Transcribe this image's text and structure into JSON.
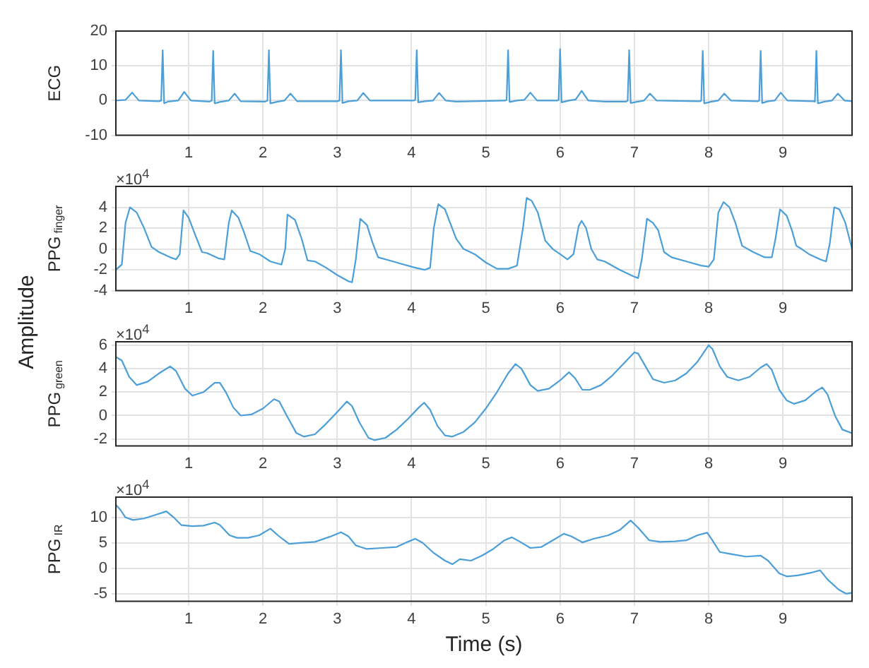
{
  "chart_data": [
    {
      "type": "line",
      "ylabel": "ECG",
      "annotations": [
        "Amplitude"
      ],
      "grid": true,
      "marker": "none",
      "xlim": [
        0.02,
        9.93
      ],
      "xticks": [
        1,
        2,
        3,
        4,
        5,
        6,
        7,
        8,
        9
      ],
      "ylim": [
        -10,
        20
      ],
      "yticks": [
        -10,
        0,
        10,
        20
      ],
      "x": [
        0.02,
        0.15,
        0.24,
        0.33,
        0.6,
        0.63,
        0.65,
        0.67,
        0.72,
        0.86,
        0.94,
        1.03,
        1.28,
        1.31,
        1.33,
        1.35,
        1.42,
        1.54,
        1.62,
        1.7,
        2.03,
        2.06,
        2.08,
        2.1,
        2.2,
        2.29,
        2.37,
        2.46,
        3.0,
        3.03,
        3.05,
        3.07,
        3.15,
        3.27,
        3.35,
        3.44,
        4.03,
        4.05,
        4.07,
        4.09,
        4.18,
        4.29,
        4.37,
        4.46,
        4.6,
        5.26,
        5.28,
        5.3,
        5.32,
        5.42,
        5.52,
        5.6,
        5.69,
        5.96,
        5.98,
        6.0,
        6.02,
        6.12,
        6.21,
        6.29,
        6.38,
        6.6,
        6.89,
        6.91,
        6.93,
        6.95,
        7.05,
        7.13,
        7.21,
        7.3,
        7.88,
        7.9,
        7.92,
        7.94,
        8.04,
        8.13,
        8.21,
        8.3,
        8.66,
        8.68,
        8.7,
        8.72,
        8.8,
        8.89,
        8.97,
        9.06,
        9.41,
        9.43,
        9.45,
        9.47,
        9.56,
        9.66,
        9.74,
        9.83,
        9.93
      ],
      "series": [
        {
          "color": "#4a9fd8",
          "values": [
            0,
            0.2,
            2.3,
            0,
            -0.2,
            0,
            14.5,
            -0.8,
            -0.3,
            0,
            2.5,
            0,
            -0.3,
            0,
            14.3,
            -0.8,
            -0.4,
            0,
            2,
            -0.2,
            -0.3,
            0,
            14.5,
            -0.8,
            -0.3,
            0,
            2,
            -0.2,
            -0.2,
            0,
            14.5,
            -0.7,
            -0.2,
            0,
            2.2,
            0,
            0,
            0.2,
            14.5,
            -0.5,
            -0.2,
            0,
            2.2,
            0,
            -0.3,
            0,
            0.2,
            14.5,
            -0.4,
            0,
            0.2,
            2.3,
            0,
            0,
            0.2,
            14.8,
            -0.5,
            0,
            0.3,
            2.8,
            0,
            -0.3,
            -0.3,
            0,
            14.5,
            -0.7,
            -0.3,
            0,
            2,
            0,
            -0.2,
            0,
            14.3,
            -0.8,
            -0.3,
            0,
            2,
            0,
            -0.2,
            0,
            14.3,
            -0.7,
            -0.2,
            0,
            2.3,
            0,
            -0.2,
            -0.3,
            14.3,
            -0.8,
            -0.3,
            0,
            2,
            0,
            -0.2
          ]
        }
      ]
    },
    {
      "type": "line",
      "ylabel": "PPG$_{finger}$",
      "annotations": [
        "×10$^{4}$"
      ],
      "grid": true,
      "marker": "none",
      "xlim": [
        0.02,
        9.93
      ],
      "xticks": [
        1,
        2,
        3,
        4,
        5,
        6,
        7,
        8,
        9
      ],
      "ylim": [
        -4,
        6
      ],
      "yticks": [
        -4,
        -2,
        0,
        2,
        4
      ],
      "x": [
        0.02,
        0.1,
        0.15,
        0.21,
        0.3,
        0.4,
        0.5,
        0.6,
        0.75,
        0.83,
        0.88,
        0.93,
        1.0,
        1.08,
        1.18,
        1.25,
        1.4,
        1.48,
        1.54,
        1.58,
        1.67,
        1.75,
        1.83,
        1.95,
        2.1,
        2.25,
        2.3,
        2.33,
        2.43,
        2.52,
        2.6,
        2.7,
        2.85,
        3.0,
        3.15,
        3.2,
        3.25,
        3.31,
        3.4,
        3.48,
        3.55,
        3.7,
        3.9,
        4.05,
        4.18,
        4.25,
        4.3,
        4.36,
        4.45,
        4.52,
        4.6,
        4.7,
        4.85,
        5.0,
        5.15,
        5.3,
        5.42,
        5.5,
        5.55,
        5.62,
        5.7,
        5.8,
        5.9,
        6.0,
        6.1,
        6.18,
        6.25,
        6.29,
        6.35,
        6.42,
        6.5,
        6.6,
        6.8,
        6.98,
        7.05,
        7.1,
        7.17,
        7.25,
        7.32,
        7.4,
        7.5,
        7.7,
        7.9,
        8.0,
        8.07,
        8.13,
        8.2,
        8.28,
        8.36,
        8.45,
        8.6,
        8.75,
        8.85,
        8.9,
        8.96,
        9.05,
        9.12,
        9.18,
        9.25,
        9.35,
        9.5,
        9.58,
        9.63,
        9.69,
        9.76,
        9.84,
        9.93
      ],
      "series": [
        {
          "color": "#4a9fd8",
          "values": [
            -2,
            -1.5,
            2.5,
            4,
            3.5,
            2,
            0.2,
            -0.3,
            -0.8,
            -1,
            -0.5,
            3.7,
            3,
            1.5,
            -0.3,
            -0.4,
            -0.9,
            -1,
            2.5,
            3.7,
            3,
            1.5,
            -0.2,
            -0.5,
            -1.2,
            -1.5,
            0,
            3.3,
            2.8,
            1,
            -1.1,
            -1.2,
            -1.8,
            -2.5,
            -3.1,
            -3.2,
            -1,
            2.9,
            2.3,
            0.5,
            -0.8,
            -1.1,
            -1.5,
            -1.8,
            -2,
            -1.8,
            2,
            4.3,
            3.8,
            2.5,
            1,
            0,
            -0.5,
            -1.3,
            -1.9,
            -1.9,
            -1.6,
            2,
            4.9,
            4.6,
            3.5,
            0.8,
            0,
            -0.5,
            -1,
            -0.5,
            2.2,
            2.7,
            2,
            0,
            -1,
            -1.2,
            -2,
            -2.6,
            -2.8,
            -1,
            2.9,
            2.5,
            1.8,
            -0.3,
            -0.8,
            -1.2,
            -1.6,
            -1.7,
            -1,
            3.5,
            4.5,
            4,
            2.5,
            0.3,
            -0.3,
            -0.8,
            -0.8,
            1,
            3.8,
            3.2,
            1.8,
            0.3,
            0,
            -0.5,
            -1,
            -1.2,
            0.5,
            4,
            3.8,
            2.5,
            0
          ]
        }
      ]
    },
    {
      "type": "line",
      "ylabel": "PPG$_{green}$",
      "annotations": [
        "×10$^{4}$"
      ],
      "grid": true,
      "marker": "none",
      "xlim": [
        0.02,
        9.93
      ],
      "xticks": [
        1,
        2,
        3,
        4,
        5,
        6,
        7,
        8,
        9
      ],
      "ylim": [
        -2.6,
        6.3
      ],
      "yticks": [
        -2,
        0,
        2,
        4,
        6
      ],
      "x": [
        0.02,
        0.1,
        0.2,
        0.3,
        0.45,
        0.6,
        0.75,
        0.83,
        0.95,
        1.05,
        1.2,
        1.35,
        1.42,
        1.5,
        1.6,
        1.7,
        1.85,
        2.0,
        2.15,
        2.22,
        2.32,
        2.45,
        2.55,
        2.7,
        2.85,
        3.0,
        3.13,
        3.2,
        3.3,
        3.42,
        3.5,
        3.65,
        3.8,
        3.95,
        4.1,
        4.17,
        4.25,
        4.35,
        4.45,
        4.55,
        4.7,
        4.85,
        5.0,
        5.15,
        5.3,
        5.4,
        5.48,
        5.6,
        5.7,
        5.85,
        6.0,
        6.12,
        6.2,
        6.3,
        6.4,
        6.55,
        6.7,
        6.85,
        7.0,
        7.05,
        7.15,
        7.25,
        7.4,
        7.55,
        7.7,
        7.85,
        8.0,
        8.05,
        8.15,
        8.25,
        8.4,
        8.55,
        8.7,
        8.78,
        8.85,
        8.95,
        9.05,
        9.15,
        9.3,
        9.45,
        9.53,
        9.6,
        9.7,
        9.8,
        9.93
      ],
      "series": [
        {
          "color": "#4a9fd8",
          "values": [
            5,
            4.7,
            3.3,
            2.6,
            2.9,
            3.6,
            4.2,
            3.8,
            2.3,
            1.7,
            2,
            2.8,
            2.8,
            2,
            0.7,
            0,
            0.1,
            0.6,
            1.4,
            1.2,
            0,
            -1.5,
            -1.8,
            -1.6,
            -0.7,
            0.3,
            1.2,
            0.8,
            -0.6,
            -1.9,
            -2.1,
            -1.9,
            -1.2,
            -0.3,
            0.7,
            1.1,
            0.5,
            -0.9,
            -1.7,
            -1.8,
            -1.4,
            -0.6,
            0.6,
            2,
            3.6,
            4.4,
            4,
            2.6,
            2.1,
            2.3,
            3,
            3.7,
            3.2,
            2.2,
            2.2,
            2.6,
            3.4,
            4.4,
            5.4,
            5.3,
            4.2,
            3.1,
            2.8,
            3,
            3.6,
            4.6,
            6,
            5.7,
            4.2,
            3.3,
            3,
            3.3,
            4.1,
            4.4,
            3.9,
            2.2,
            1.3,
            1,
            1.3,
            2.1,
            2.4,
            1.8,
            0,
            -1.2,
            -1.5
          ]
        }
      ]
    },
    {
      "type": "line",
      "ylabel": "PPG$_{IR}$",
      "xlabel": "Time (s)",
      "annotations": [
        "×10$^{4}$"
      ],
      "grid": true,
      "marker": "none",
      "xlim": [
        0.02,
        9.93
      ],
      "xticks": [
        1,
        2,
        3,
        4,
        5,
        6,
        7,
        8,
        9
      ],
      "ylim": [
        -6.5,
        14
      ],
      "yticks": [
        -5,
        0,
        5,
        10
      ],
      "x": [
        0.02,
        0.08,
        0.15,
        0.25,
        0.4,
        0.55,
        0.7,
        0.8,
        0.9,
        1.05,
        1.2,
        1.35,
        1.42,
        1.55,
        1.65,
        1.8,
        1.95,
        2.1,
        2.2,
        2.35,
        2.5,
        2.7,
        2.9,
        3.05,
        3.15,
        3.25,
        3.4,
        3.6,
        3.8,
        3.95,
        4.05,
        4.15,
        4.3,
        4.45,
        4.55,
        4.65,
        4.8,
        4.95,
        5.1,
        5.25,
        5.35,
        5.45,
        5.6,
        5.75,
        5.9,
        6.05,
        6.15,
        6.3,
        6.45,
        6.65,
        6.8,
        6.95,
        7.05,
        7.2,
        7.35,
        7.55,
        7.7,
        7.85,
        7.98,
        8.05,
        8.15,
        8.3,
        8.5,
        8.7,
        8.8,
        8.95,
        9.05,
        9.2,
        9.4,
        9.5,
        9.6,
        9.75,
        9.85,
        9.93
      ],
      "series": [
        {
          "color": "#4a9fd8",
          "values": [
            12.5,
            11.5,
            10,
            9.5,
            9.8,
            10.5,
            11.2,
            10,
            8.5,
            8.3,
            8.4,
            9,
            8.5,
            6.5,
            6,
            6,
            6.5,
            7.8,
            6.5,
            4.8,
            5,
            5.2,
            6.2,
            7.1,
            6.3,
            4.5,
            3.8,
            4,
            4.2,
            5.2,
            5.8,
            5,
            3,
            1.5,
            0.8,
            1.8,
            1.5,
            2.5,
            3.8,
            5.5,
            6.1,
            5.3,
            4,
            4.2,
            5.5,
            6.8,
            6.3,
            5.1,
            5.8,
            6.5,
            7.5,
            9.4,
            8,
            5.5,
            5.2,
            5.3,
            5.5,
            6.5,
            7,
            5.5,
            3.2,
            2.8,
            2.3,
            2.5,
            1.5,
            -1,
            -1.6,
            -1.4,
            -0.8,
            -0.4,
            -2.2,
            -4.2,
            -5,
            -4.8
          ]
        }
      ]
    }
  ]
}
